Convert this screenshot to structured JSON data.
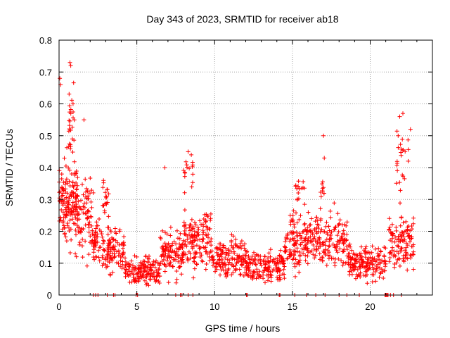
{
  "chart_data": {
    "type": "scatter",
    "title": "Day 343 of 2023, SRMTID for receiver ab18",
    "xlabel": "GPS time / hours",
    "ylabel": "SRMTID / TECUs",
    "xlim": [
      0,
      24
    ],
    "ylim": [
      0,
      0.8
    ],
    "xticks": [
      "0",
      "5",
      "10",
      "15",
      "20"
    ],
    "yticks": [
      "0",
      "0.1",
      "0.2",
      "0.3",
      "0.4",
      "0.5",
      "0.6",
      "0.7",
      "0.8"
    ],
    "grid": true,
    "marker": "+",
    "color": "#ff0000",
    "series": [
      {
        "name": "SRMTID",
        "segments": [
          {
            "x0": 0.0,
            "x1": 1.2,
            "base": 0.3,
            "spread": 0.2,
            "n": 140
          },
          {
            "x0": 0.6,
            "x1": 1.0,
            "base": 0.55,
            "spread": 0.18,
            "n": 25
          },
          {
            "x0": 1.0,
            "x1": 2.2,
            "base": 0.25,
            "spread": 0.18,
            "n": 90
          },
          {
            "x0": 2.2,
            "x1": 3.2,
            "base": 0.16,
            "spread": 0.12,
            "n": 70
          },
          {
            "x0": 2.8,
            "x1": 3.2,
            "base": 0.3,
            "spread": 0.1,
            "n": 20
          },
          {
            "x0": 3.2,
            "x1": 4.2,
            "base": 0.14,
            "spread": 0.1,
            "n": 70
          },
          {
            "x0": 4.2,
            "x1": 6.5,
            "base": 0.08,
            "spread": 0.06,
            "n": 160
          },
          {
            "x0": 6.5,
            "x1": 8.0,
            "base": 0.13,
            "spread": 0.1,
            "n": 110
          },
          {
            "x0": 8.0,
            "x1": 9.8,
            "base": 0.17,
            "spread": 0.14,
            "n": 140
          },
          {
            "x0": 8.0,
            "x1": 8.6,
            "base": 0.38,
            "spread": 0.08,
            "n": 15
          },
          {
            "x0": 9.8,
            "x1": 12.0,
            "base": 0.12,
            "spread": 0.09,
            "n": 150
          },
          {
            "x0": 12.0,
            "x1": 14.5,
            "base": 0.09,
            "spread": 0.07,
            "n": 170
          },
          {
            "x0": 14.5,
            "x1": 16.5,
            "base": 0.17,
            "spread": 0.12,
            "n": 150
          },
          {
            "x0": 15.2,
            "x1": 15.8,
            "base": 0.33,
            "spread": 0.06,
            "n": 15
          },
          {
            "x0": 16.5,
            "x1": 18.6,
            "base": 0.17,
            "spread": 0.13,
            "n": 140
          },
          {
            "x0": 16.8,
            "x1": 17.2,
            "base": 0.32,
            "spread": 0.08,
            "n": 10
          },
          {
            "x0": 18.6,
            "x1": 21.0,
            "base": 0.1,
            "spread": 0.07,
            "n": 170
          },
          {
            "x0": 21.2,
            "x1": 22.8,
            "base": 0.16,
            "spread": 0.12,
            "n": 120
          },
          {
            "x0": 21.6,
            "x1": 22.6,
            "base": 0.42,
            "spread": 0.14,
            "n": 25
          }
        ],
        "outliers": [
          {
            "x": 0.7,
            "y": 0.73
          },
          {
            "x": 0.75,
            "y": 0.72
          },
          {
            "x": 0.05,
            "y": 0.68
          },
          {
            "x": 0.1,
            "y": 0.66
          },
          {
            "x": 0.9,
            "y": 0.6
          },
          {
            "x": 1.6,
            "y": 0.55
          },
          {
            "x": 17.0,
            "y": 0.5
          },
          {
            "x": 17.05,
            "y": 0.43
          },
          {
            "x": 6.8,
            "y": 0.4
          },
          {
            "x": 8.3,
            "y": 0.45
          },
          {
            "x": 8.5,
            "y": 0.44
          },
          {
            "x": 21.9,
            "y": 0.56
          },
          {
            "x": 22.1,
            "y": 0.57
          },
          {
            "x": 21.8,
            "y": 0.5
          }
        ],
        "zero_points_x": [
          2.2,
          2.35,
          2.5,
          3.1,
          3.5,
          3.6,
          4.95,
          5.05,
          7.5,
          7.8,
          7.9,
          8.3,
          8.6,
          12.05,
          12.1,
          14.15,
          14.2,
          15.15,
          15.9,
          16.5,
          17.1,
          18.0,
          18.5,
          19.3,
          20.95,
          21.0,
          21.05,
          21.1,
          21.15,
          21.3,
          21.5,
          22.0
        ]
      }
    ]
  }
}
